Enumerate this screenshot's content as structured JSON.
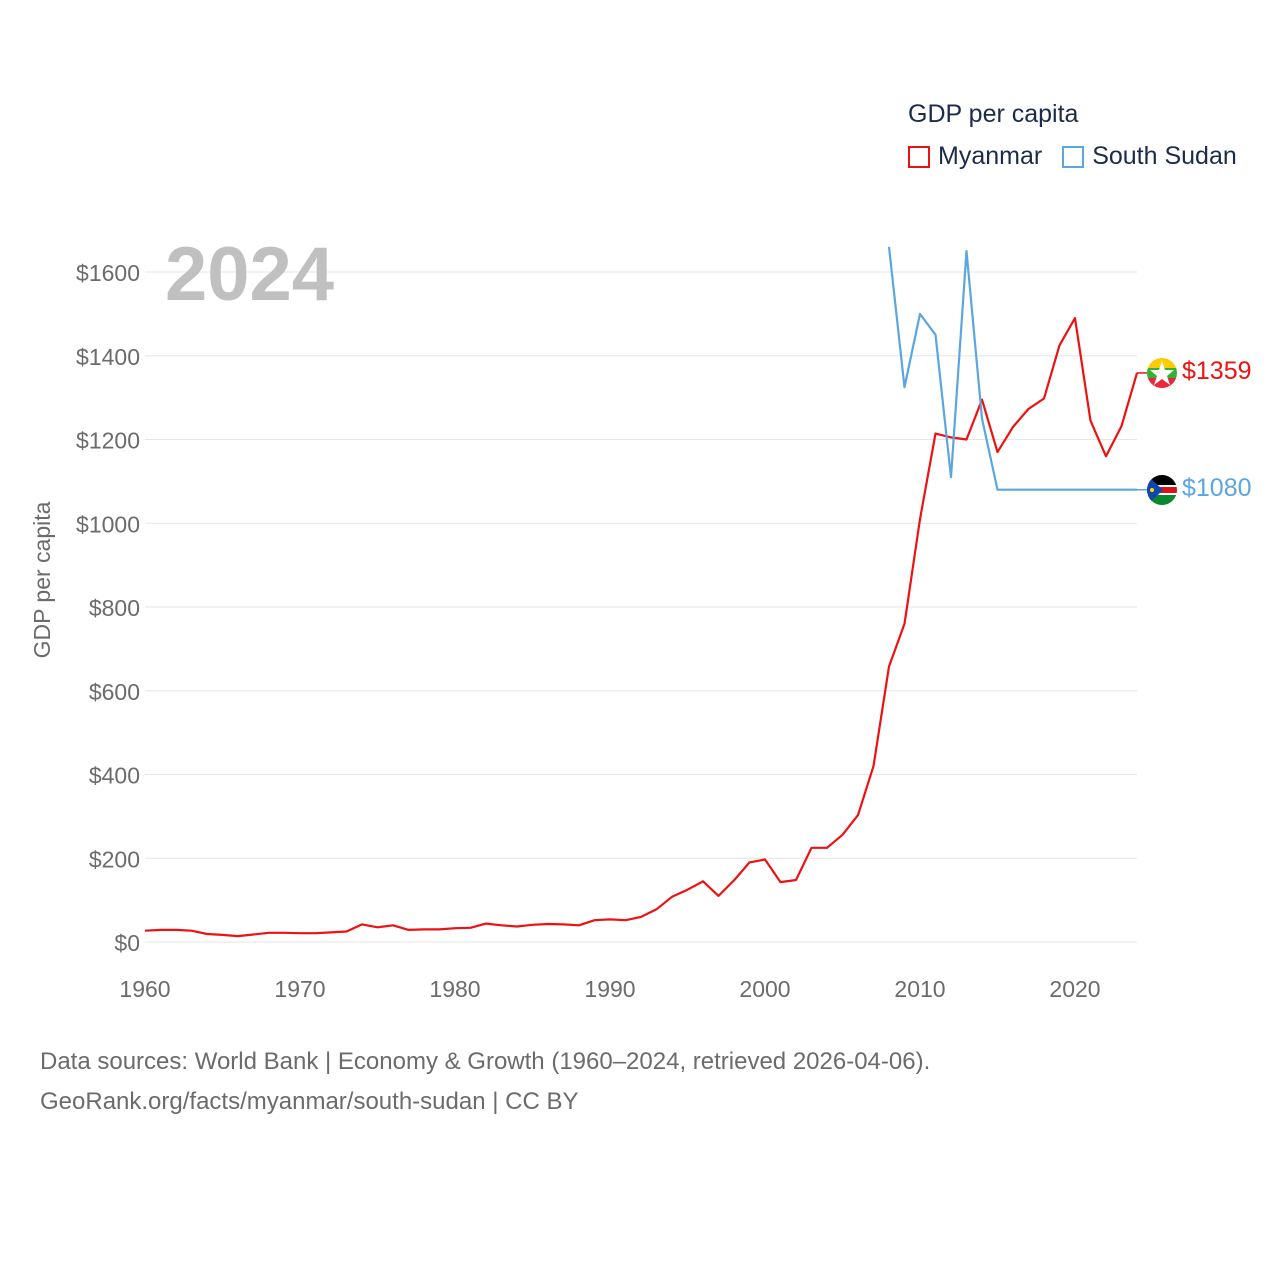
{
  "chart_data": {
    "type": "line",
    "title": "GDP per capita",
    "year_label": "2024",
    "ylabel": "GDP per capita",
    "xlabel": "",
    "xlim": [
      1960,
      2024
    ],
    "ylim": [
      0,
      1600
    ],
    "x_ticks": [
      1960,
      1970,
      1980,
      1990,
      2000,
      2010,
      2020
    ],
    "x_tick_labels": [
      "1960",
      "1970",
      "1980",
      "1990",
      "2000",
      "2010",
      "2020"
    ],
    "y_ticks": [
      0,
      200,
      400,
      600,
      800,
      1000,
      1200,
      1400,
      1600
    ],
    "y_tick_labels": [
      "$0",
      "$200",
      "$400",
      "$600",
      "$800",
      "$1000",
      "$1200",
      "$1400",
      "$1600"
    ],
    "grid": true,
    "legend_position": "top-right",
    "series": [
      {
        "name": "Myanmar",
        "color": "#ee1111",
        "end_label": "$1359",
        "x": [
          1960,
          1961,
          1962,
          1963,
          1964,
          1965,
          1966,
          1967,
          1968,
          1969,
          1970,
          1971,
          1972,
          1973,
          1974,
          1975,
          1976,
          1977,
          1978,
          1979,
          1980,
          1981,
          1982,
          1983,
          1984,
          1985,
          1986,
          1987,
          1988,
          1989,
          1990,
          1991,
          1992,
          1993,
          1994,
          1995,
          1996,
          1997,
          1998,
          1999,
          2000,
          2001,
          2002,
          2003,
          2004,
          2005,
          2006,
          2007,
          2008,
          2009,
          2010,
          2011,
          2012,
          2013,
          2014,
          2015,
          2016,
          2017,
          2018,
          2019,
          2020,
          2021,
          2022,
          2023,
          2024
        ],
        "values": [
          27,
          29,
          29,
          27,
          19,
          17,
          14,
          18,
          22,
          22,
          21,
          21,
          23,
          25,
          42,
          35,
          40,
          29,
          30,
          30,
          33,
          34,
          44,
          40,
          37,
          41,
          43,
          42,
          40,
          52,
          54,
          52,
          60,
          78,
          108,
          125,
          145,
          110,
          147,
          190,
          197,
          143,
          148,
          225,
          225,
          256,
          303,
          420,
          658,
          760,
          1010,
          1214,
          1205,
          1200,
          1295,
          1170,
          1230,
          1273,
          1298,
          1425,
          1490,
          1245,
          1160,
          1232,
          1359
        ]
      },
      {
        "name": "South Sudan",
        "color": "#5ba6e0",
        "end_label": "$1080",
        "x": [
          2008,
          2009,
          2010,
          2011,
          2012,
          2013,
          2014,
          2015,
          2016,
          2017,
          2018,
          2019,
          2020,
          2021,
          2022,
          2023,
          2024
        ],
        "values": [
          1660,
          1325,
          1500,
          1450,
          1110,
          1650,
          1250,
          1080,
          1080,
          1080,
          1080,
          1080,
          1080,
          1080,
          1080,
          1080,
          1080
        ]
      }
    ]
  },
  "icons": {
    "myanmar_flag": "myanmar-flag-icon",
    "south_sudan_flag": "south-sudan-flag-icon"
  },
  "footer": {
    "line1": "Data sources: World Bank | Economy & Growth (1960–2024, retrieved 2026-04-06).",
    "line2": "GeoRank.org/facts/myanmar/south-sudan | CC BY"
  }
}
